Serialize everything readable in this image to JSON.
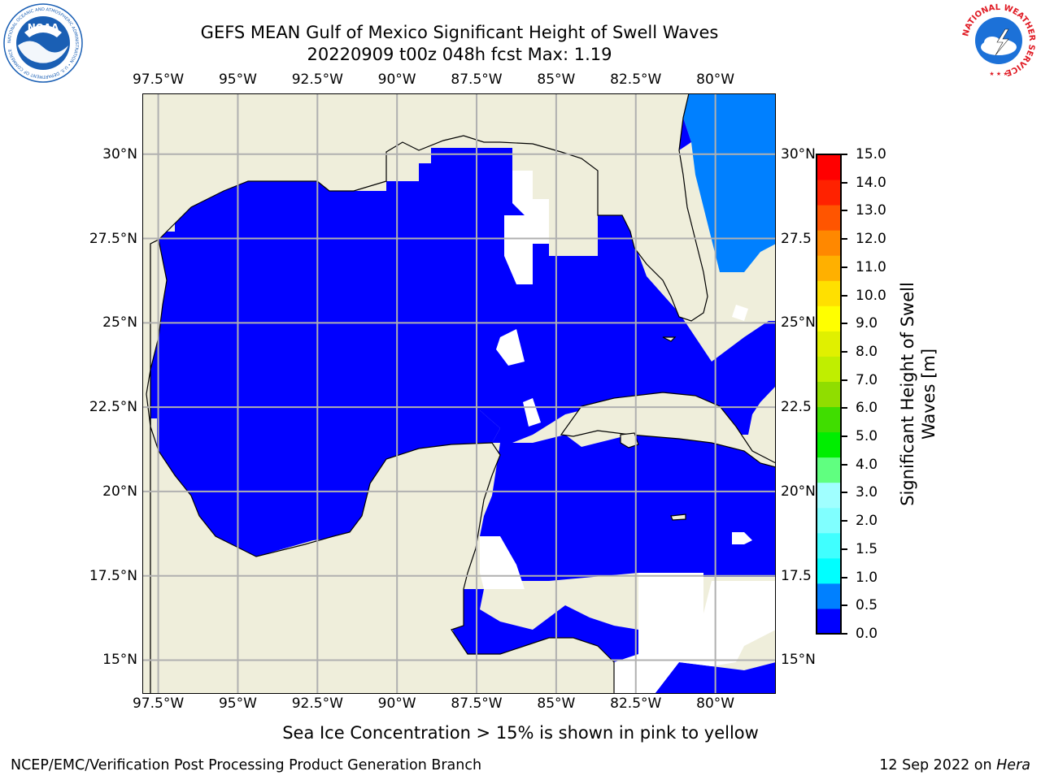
{
  "title": {
    "line1": "GEFS MEAN Gulf of Mexico Significant Height of Swell Waves",
    "line2": "20220909 t00z 048h fcst   Max: 1.19"
  },
  "logos": {
    "left": {
      "name": "noaa-logo",
      "text": "NOAA",
      "ring_text": "NATIONAL OCEANIC AND ATMOSPHERIC ADMINISTRATION • U.S. DEPARTMENT OF COMMERCE",
      "color": "#1a5fb4"
    },
    "right": {
      "name": "nws-logo",
      "ring_text": "NATIONAL WEATHER SERVICE",
      "color": "#e01b24"
    }
  },
  "map": {
    "lon_range": [
      -98,
      -78.1
    ],
    "lat_range": [
      14.0,
      31.8
    ],
    "lon_ticks": [
      "97.5°W",
      "95°W",
      "92.5°W",
      "90°W",
      "87.5°W",
      "85°W",
      "82.5°W",
      "80°W"
    ],
    "lon_values": [
      -97.5,
      -95,
      -92.5,
      -90,
      -87.5,
      -85,
      -82.5,
      -80
    ],
    "lat_ticks": [
      "30°N",
      "27.5°N",
      "25°N",
      "22.5°N",
      "20°N",
      "17.5°N",
      "15°N"
    ],
    "lat_values": [
      30,
      27.5,
      25,
      22.5,
      20,
      17.5,
      15
    ],
    "right_lat_ticks": [
      "30°N",
      "27.5",
      "25°N",
      "22.5",
      "20°N",
      "17.5",
      "15°N"
    ],
    "grid": true,
    "colors": {
      "land": "#efeedb",
      "no_data": "#ffffff",
      "coast": "#000000",
      "grid": "#b0b0b0",
      "swell_0_0p5": "#0000ff",
      "swell_0p5_1": "#0080ff",
      "swell_1_1p5": "#00ffff"
    }
  },
  "colorbar": {
    "label_line1": "Significant Height of Swell",
    "label_line2": "Waves [m]",
    "ticks": [
      "15.0",
      "14.0",
      "13.0",
      "12.0",
      "11.0",
      "10.0",
      "9.0",
      "8.0",
      "7.0",
      "6.0",
      "5.0",
      "4.0",
      "3.0",
      "2.0",
      "1.5",
      "1.0",
      "0.5",
      "0.0"
    ],
    "colors": [
      "#0000ff",
      "#0080ff",
      "#00ffff",
      "#40ffff",
      "#80ffff",
      "#a0ffff",
      "#60ff80",
      "#00ee00",
      "#40dd00",
      "#90dd00",
      "#c0ee00",
      "#e0f000",
      "#ffff00",
      "#ffe000",
      "#ffb000",
      "#ff8800",
      "#ff5500",
      "#ff2200",
      "#ff0000"
    ]
  },
  "footnote": "Sea Ice Concentration > 15% is shown in pink to yellow",
  "credit_left": "NCEP/EMC/Verification Post Processing Product Generation Branch",
  "credit_right_date": "12 Sep 2022 on ",
  "credit_right_host": "Hera"
}
